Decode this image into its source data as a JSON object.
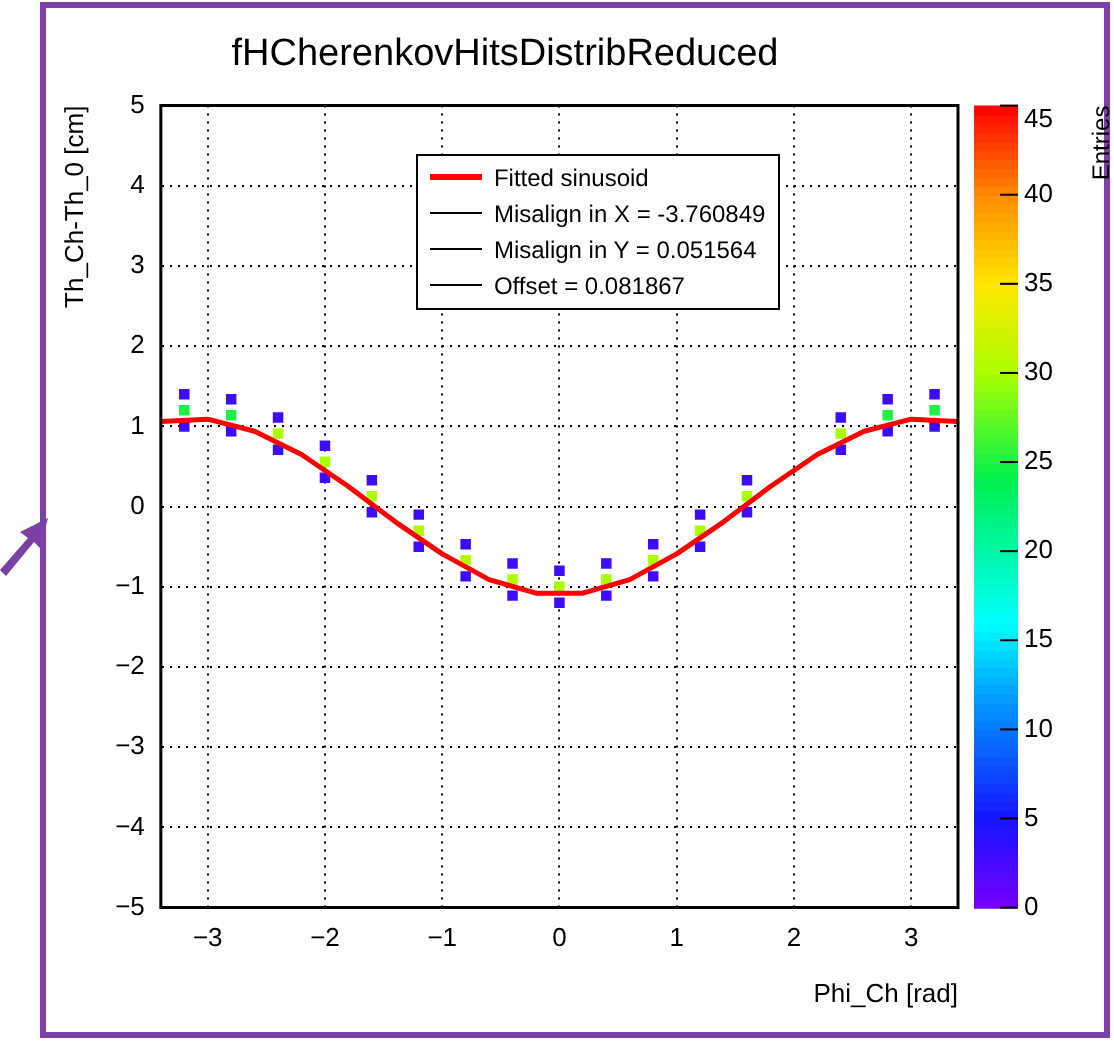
{
  "chart_data": {
    "type": "scatter",
    "title": "fHCherenkovHitsDistribReduced",
    "xlabel": "Phi_Ch [rad]",
    "ylabel": "Th_Ch-Th_0 [cm]",
    "clabel": "Entries",
    "xlim": [
      -3.4,
      3.4
    ],
    "xticks": [
      -3,
      -2,
      -1,
      0,
      1,
      2,
      3
    ],
    "ylim": [
      -5,
      5
    ],
    "yticks": [
      -5,
      -4,
      -3,
      -2,
      -1,
      0,
      1,
      2,
      3,
      4,
      5
    ],
    "clim": [
      0,
      45
    ],
    "cticks": [
      0,
      5,
      10,
      15,
      20,
      25,
      30,
      35,
      40,
      45
    ],
    "grid": true,
    "legend": "top",
    "marker": "square",
    "annotations": [
      "Misalign in X = -3.760849",
      "Misalign in Y = 0.051564",
      "Offset = 0.081867"
    ],
    "x": [
      -3.2,
      -2.8,
      -2.4,
      -2.0,
      -1.6,
      -1.2,
      -0.8,
      -0.4,
      0,
      0.4,
      0.8,
      1.2,
      1.6,
      2.4,
      2.8,
      3.2,
      -3.2,
      -2.8,
      -2.4,
      -2.0,
      -1.6,
      -1.2,
      -0.8,
      -0.4,
      0,
      0.4,
      0.8,
      1.2,
      1.6,
      2.4,
      2.8,
      3.2,
      -3.2,
      -2.8,
      -2.4,
      -2.0,
      -1.6,
      -1.2,
      -0.8,
      -0.4,
      0,
      0.4,
      0.8,
      1.2,
      1.6,
      2.4,
      2.8,
      3.2
    ],
    "values": [
      1.2,
      1.14,
      0.91,
      0.56,
      0.13,
      -0.3,
      -0.67,
      -0.91,
      -1.0,
      -0.91,
      -0.67,
      -0.3,
      0.13,
      0.91,
      1.14,
      1.2,
      1.4,
      1.34,
      1.11,
      0.76,
      0.33,
      -0.1,
      -0.47,
      -0.71,
      -0.8,
      -0.71,
      -0.47,
      -0.1,
      0.33,
      1.11,
      1.34,
      1.4,
      1.0,
      0.94,
      0.71,
      0.36,
      -0.07,
      -0.5,
      -0.87,
      -1.11,
      -1.2,
      -1.11,
      -0.87,
      -0.5,
      -0.07,
      0.71,
      0.94,
      1.0
    ],
    "cvalues": [
      25,
      25,
      30,
      30,
      30,
      30,
      30,
      30,
      30,
      30,
      30,
      30,
      30,
      30,
      25,
      25,
      3,
      3,
      3,
      3,
      3,
      3,
      3,
      3,
      3,
      3,
      3,
      3,
      3,
      3,
      3,
      3,
      3,
      3,
      3,
      3,
      3,
      3,
      3,
      3,
      3,
      3,
      3,
      3,
      3,
      3,
      3,
      3
    ],
    "colors": [
      "#1cf343",
      "#1cf343",
      "#aaff00",
      "#aaff00",
      "#aaff00",
      "#aaff00",
      "#aaff00",
      "#aaff00",
      "#aaff00",
      "#aaff00",
      "#aaff00",
      "#aaff00",
      "#aaff00",
      "#aaff00",
      "#1cf343",
      "#1cf343",
      "#3c0cff",
      "#3c0cff",
      "#3c0cff",
      "#3c0cff",
      "#3c0cff",
      "#3c0cff",
      "#3c0cff",
      "#3c0cff",
      "#3c0cff",
      "#3c0cff",
      "#3c0cff",
      "#3c0cff",
      "#3c0cff",
      "#3c0cff",
      "#3c0cff",
      "#3c0cff",
      "#3c0cff",
      "#3c0cff",
      "#3c0cff",
      "#3c0cff",
      "#3c0cff",
      "#3c0cff",
      "#3c0cff",
      "#3c0cff",
      "#3c0cff",
      "#3c0cff",
      "#3c0cff",
      "#3c0cff",
      "#3c0cff",
      "#3c0cff",
      "#3c0cff",
      "#3c0cff"
    ],
    "series": [
      {
        "type": "line",
        "name": "Fitted sinusoid",
        "color": "#ff0000",
        "marker": "none",
        "line_style": "solid",
        "x": [
          -3.4,
          -3.0,
          -2.6,
          -2.2,
          -1.8,
          -1.4,
          -1.0,
          -0.6,
          -0.2,
          0.2,
          0.6,
          1.0,
          1.4,
          1.8,
          2.2,
          2.6,
          3.0,
          3.4
        ],
        "values": [
          1.06,
          1.09,
          0.94,
          0.65,
          0.25,
          -0.19,
          -0.59,
          -0.91,
          -1.08,
          -1.08,
          -0.91,
          -0.59,
          -0.19,
          0.25,
          0.65,
          0.94,
          1.09,
          1.06
        ]
      }
    ]
  }
}
